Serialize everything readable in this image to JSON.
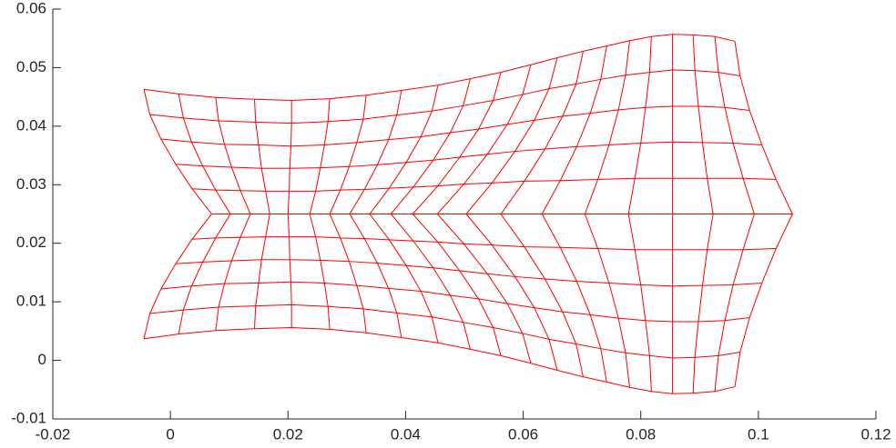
{
  "chart_data": {
    "type": "mesh",
    "color": "#ff0000",
    "xlim": [
      -0.02,
      0.12
    ],
    "ylim": [
      -0.01,
      0.06
    ],
    "xticks": [
      -0.02,
      0,
      0.02,
      0.04,
      0.06,
      0.08,
      0.1,
      0.12
    ],
    "yticks": [
      -0.01,
      0,
      0.01,
      0.02,
      0.03,
      0.04,
      0.05,
      0.06
    ],
    "grid": false,
    "rows": [
      {
        "x": [
          -0.0045,
          0.0014,
          0.0077,
          0.0143,
          0.0206,
          0.0271,
          0.0333,
          0.0393,
          0.0455,
          0.051,
          0.0562,
          0.0613,
          0.0658,
          0.0702,
          0.0742,
          0.0781,
          0.0818,
          0.0854,
          0.0889,
          0.0926,
          0.096
        ],
        "y": [
          0.0463,
          0.0455,
          0.0449,
          0.0446,
          0.0444,
          0.0447,
          0.0453,
          0.0461,
          0.047,
          0.0481,
          0.0492,
          0.0505,
          0.0517,
          0.0528,
          0.0537,
          0.0546,
          0.0553,
          0.0557,
          0.0556,
          0.0553,
          0.0545
        ]
      },
      {
        "x": [
          -0.0035,
          0.0022,
          0.0082,
          0.0145,
          0.0206,
          0.0268,
          0.0328,
          0.0385,
          0.0445,
          0.0498,
          0.0549,
          0.0599,
          0.0644,
          0.069,
          0.0732,
          0.0774,
          0.0815,
          0.0854,
          0.0892,
          0.0932,
          0.0969
        ],
        "y": [
          0.042,
          0.0414,
          0.0409,
          0.0407,
          0.0405,
          0.0408,
          0.0412,
          0.0419,
          0.0426,
          0.0435,
          0.0444,
          0.0454,
          0.0464,
          0.0472,
          0.048,
          0.0487,
          0.0492,
          0.0496,
          0.0495,
          0.0492,
          0.0486
        ]
      },
      {
        "x": [
          -0.0016,
          0.0036,
          0.0092,
          0.015,
          0.0205,
          0.0262,
          0.0317,
          0.0371,
          0.0426,
          0.0476,
          0.0524,
          0.0573,
          0.0619,
          0.0667,
          0.0714,
          0.0762,
          0.0808,
          0.0854,
          0.0898,
          0.0943,
          0.0985
        ],
        "y": [
          0.0378,
          0.0373,
          0.0369,
          0.0368,
          0.0366,
          0.0368,
          0.0372,
          0.0377,
          0.0382,
          0.0389,
          0.0395,
          0.0403,
          0.041,
          0.0417,
          0.0422,
          0.0428,
          0.0432,
          0.0434,
          0.0434,
          0.0432,
          0.0427
        ]
      },
      {
        "x": [
          0.0009,
          0.0055,
          0.0104,
          0.0155,
          0.0203,
          0.0255,
          0.0304,
          0.0352,
          0.0401,
          0.0447,
          0.0492,
          0.0539,
          0.0586,
          0.0637,
          0.0691,
          0.0746,
          0.08,
          0.0854,
          0.0905,
          0.0957,
          0.1006
        ],
        "y": [
          0.0335,
          0.0332,
          0.033,
          0.0328,
          0.0328,
          0.0329,
          0.0331,
          0.0334,
          0.0338,
          0.0342,
          0.0347,
          0.0352,
          0.0357,
          0.0361,
          0.0365,
          0.0368,
          0.0371,
          0.0373,
          0.0372,
          0.0371,
          0.0368
        ]
      },
      {
        "x": [
          0.0037,
          0.0077,
          0.0119,
          0.0162,
          0.0202,
          0.0247,
          0.0289,
          0.033,
          0.0372,
          0.0413,
          0.0455,
          0.0499,
          0.0547,
          0.0602,
          0.0663,
          0.0727,
          0.079,
          0.0854,
          0.0913,
          0.0974,
          0.103
        ],
        "y": [
          0.0293,
          0.0291,
          0.029,
          0.0289,
          0.0289,
          0.0289,
          0.0291,
          0.0292,
          0.0294,
          0.0296,
          0.0298,
          0.0301,
          0.0303,
          0.0306,
          0.0307,
          0.0309,
          0.0311,
          0.0311,
          0.0311,
          0.0311,
          0.0309
        ]
      },
      {
        "x": [
          0.007,
          0.0102,
          0.0136,
          0.0169,
          0.02,
          0.0237,
          0.0271,
          0.0305,
          0.0339,
          0.0375,
          0.0412,
          0.0454,
          0.0503,
          0.0562,
          0.0632,
          0.0705,
          0.0779,
          0.0854,
          0.0923,
          0.0993,
          0.1058
        ],
        "y": [
          0.025,
          0.025,
          0.025,
          0.025,
          0.025,
          0.025,
          0.025,
          0.025,
          0.025,
          0.025,
          0.025,
          0.025,
          0.025,
          0.025,
          0.025,
          0.025,
          0.025,
          0.025,
          0.025,
          0.025,
          0.025
        ]
      },
      {
        "x": [
          0.0037,
          0.0077,
          0.0119,
          0.0162,
          0.0202,
          0.0247,
          0.0289,
          0.033,
          0.0372,
          0.0413,
          0.0455,
          0.0499,
          0.0547,
          0.0602,
          0.0663,
          0.0727,
          0.079,
          0.0854,
          0.0913,
          0.0974,
          0.103
        ],
        "y": [
          0.0207,
          0.0209,
          0.021,
          0.0211,
          0.0211,
          0.0211,
          0.0209,
          0.0208,
          0.0206,
          0.0204,
          0.0202,
          0.0199,
          0.0197,
          0.0194,
          0.0193,
          0.0191,
          0.0189,
          0.0189,
          0.0189,
          0.0189,
          0.0191
        ]
      },
      {
        "x": [
          0.0009,
          0.0055,
          0.0104,
          0.0155,
          0.0203,
          0.0255,
          0.0304,
          0.0352,
          0.0401,
          0.0447,
          0.0492,
          0.0539,
          0.0586,
          0.0637,
          0.0691,
          0.0746,
          0.08,
          0.0854,
          0.0905,
          0.0957,
          0.1006
        ],
        "y": [
          0.0165,
          0.0168,
          0.017,
          0.0172,
          0.0172,
          0.0171,
          0.0169,
          0.0166,
          0.0162,
          0.0158,
          0.0153,
          0.0148,
          0.0143,
          0.0139,
          0.0135,
          0.0132,
          0.0129,
          0.0127,
          0.0128,
          0.0129,
          0.0132
        ]
      },
      {
        "x": [
          -0.0016,
          0.0036,
          0.0092,
          0.015,
          0.0205,
          0.0262,
          0.0317,
          0.0371,
          0.0426,
          0.0476,
          0.0524,
          0.0573,
          0.0619,
          0.0667,
          0.0714,
          0.0762,
          0.0808,
          0.0854,
          0.0898,
          0.0943,
          0.0985
        ],
        "y": [
          0.0122,
          0.0127,
          0.0131,
          0.0132,
          0.0134,
          0.0132,
          0.0128,
          0.0123,
          0.0118,
          0.0111,
          0.0105,
          0.0097,
          0.009,
          0.0083,
          0.0078,
          0.0072,
          0.0068,
          0.0066,
          0.0066,
          0.0068,
          0.0073
        ]
      },
      {
        "x": [
          -0.0035,
          0.0022,
          0.0082,
          0.0145,
          0.0206,
          0.0268,
          0.0328,
          0.0385,
          0.0445,
          0.0498,
          0.0549,
          0.0599,
          0.0644,
          0.069,
          0.0732,
          0.0774,
          0.0815,
          0.0854,
          0.0892,
          0.0932,
          0.0969
        ],
        "y": [
          0.008,
          0.0086,
          0.0091,
          0.0093,
          0.0095,
          0.0092,
          0.0088,
          0.0081,
          0.0074,
          0.0065,
          0.0056,
          0.0046,
          0.0036,
          0.0028,
          0.002,
          0.0013,
          0.0008,
          0.0004,
          0.0005,
          0.0008,
          0.0014
        ]
      },
      {
        "x": [
          -0.0045,
          0.0014,
          0.0077,
          0.0143,
          0.0206,
          0.0271,
          0.0333,
          0.0393,
          0.0455,
          0.051,
          0.0562,
          0.0613,
          0.0658,
          0.0702,
          0.0742,
          0.0781,
          0.0818,
          0.0854,
          0.0889,
          0.0926,
          0.096
        ],
        "y": [
          0.0037,
          0.0045,
          0.0051,
          0.0054,
          0.0056,
          0.0053,
          0.0047,
          0.0039,
          0.003,
          0.0019,
          0.0008,
          -0.0005,
          -0.0017,
          -0.0028,
          -0.0037,
          -0.0046,
          -0.0053,
          -0.0057,
          -0.0056,
          -0.0053,
          -0.0045
        ]
      }
    ]
  }
}
